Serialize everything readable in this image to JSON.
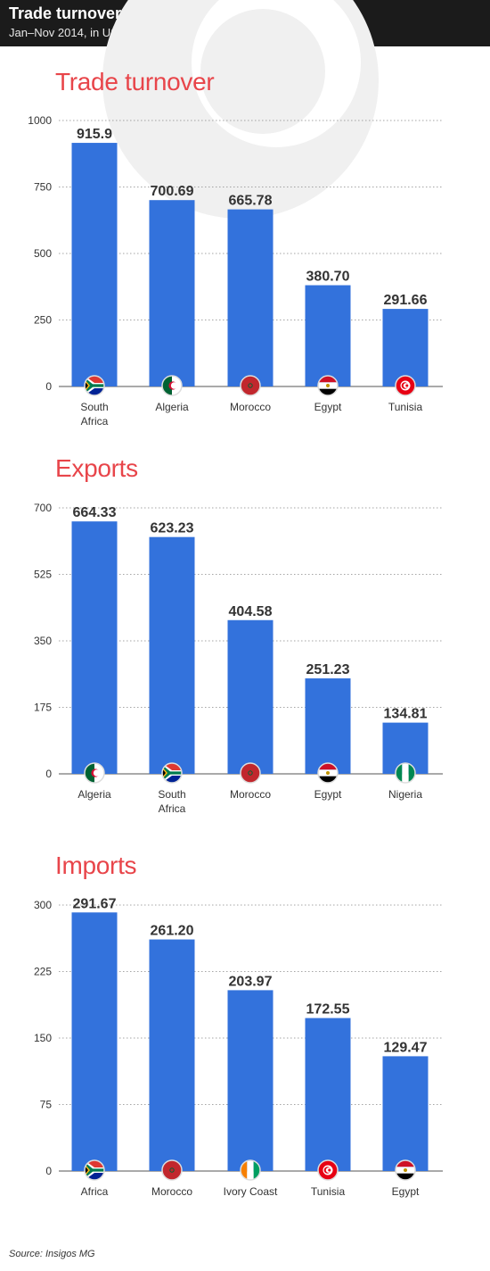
{
  "header": {
    "title": "Trade turnover",
    "subtitle": "Jan–Nov 2014, in USD million"
  },
  "source": "Source: Insigos MG",
  "colors": {
    "bar": "#3372dc",
    "title": "#e8454a",
    "header_bg": "#1b1b1b"
  },
  "chart_data": [
    {
      "type": "bar",
      "title": "Trade turnover",
      "categories": [
        "South Africa",
        "Algeria",
        "Morocco",
        "Egypt",
        "Tunisia"
      ],
      "category_lines": [
        [
          "South",
          "Africa"
        ],
        [
          "Algeria"
        ],
        [
          "Morocco"
        ],
        [
          "Egypt"
        ],
        [
          "Tunisia"
        ]
      ],
      "flags": [
        "south-africa-flag-icon",
        "algeria-flag-icon",
        "morocco-flag-icon",
        "egypt-flag-icon",
        "tunisia-flag-icon"
      ],
      "values": [
        915.9,
        700.69,
        665.78,
        380.7,
        291.66
      ],
      "value_labels": [
        "915.9",
        "700.69",
        "665.78",
        "380.70",
        "291.66"
      ],
      "ylim": [
        0,
        1000
      ],
      "yticks": [
        0,
        250,
        500,
        750,
        1000
      ],
      "grid": true
    },
    {
      "type": "bar",
      "title": "Exports",
      "categories": [
        "Algeria",
        "South Africa",
        "Morocco",
        "Egypt",
        "Nigeria"
      ],
      "category_lines": [
        [
          "Algeria"
        ],
        [
          "South",
          "Africa"
        ],
        [
          "Morocco"
        ],
        [
          "Egypt"
        ],
        [
          "Nigeria"
        ]
      ],
      "flags": [
        "algeria-flag-icon",
        "south-africa-flag-icon",
        "morocco-flag-icon",
        "egypt-flag-icon",
        "nigeria-flag-icon"
      ],
      "values": [
        664.33,
        623.23,
        404.58,
        251.23,
        134.81
      ],
      "value_labels": [
        "664.33",
        "623.23",
        "404.58",
        "251.23",
        "134.81"
      ],
      "ylim": [
        0,
        700
      ],
      "yticks": [
        0,
        175,
        350,
        525,
        700
      ],
      "grid": true
    },
    {
      "type": "bar",
      "title": "Imports",
      "categories": [
        "Africa",
        "Morocco",
        "Ivory Coast",
        "Tunisia",
        "Egypt"
      ],
      "category_lines": [
        [
          "Africa"
        ],
        [
          "Morocco"
        ],
        [
          "Ivory Coast"
        ],
        [
          "Tunisia"
        ],
        [
          "Egypt"
        ]
      ],
      "flags": [
        "south-africa-flag-icon",
        "morocco-flag-icon",
        "ivory-coast-flag-icon",
        "tunisia-flag-icon",
        "egypt-flag-icon"
      ],
      "values": [
        291.67,
        261.2,
        203.97,
        172.55,
        129.47
      ],
      "value_labels": [
        "291.67",
        "261.20",
        "203.97",
        "172.55",
        "129.47"
      ],
      "ylim": [
        0,
        300
      ],
      "yticks": [
        0,
        75,
        150,
        225,
        300
      ],
      "grid": true
    }
  ]
}
